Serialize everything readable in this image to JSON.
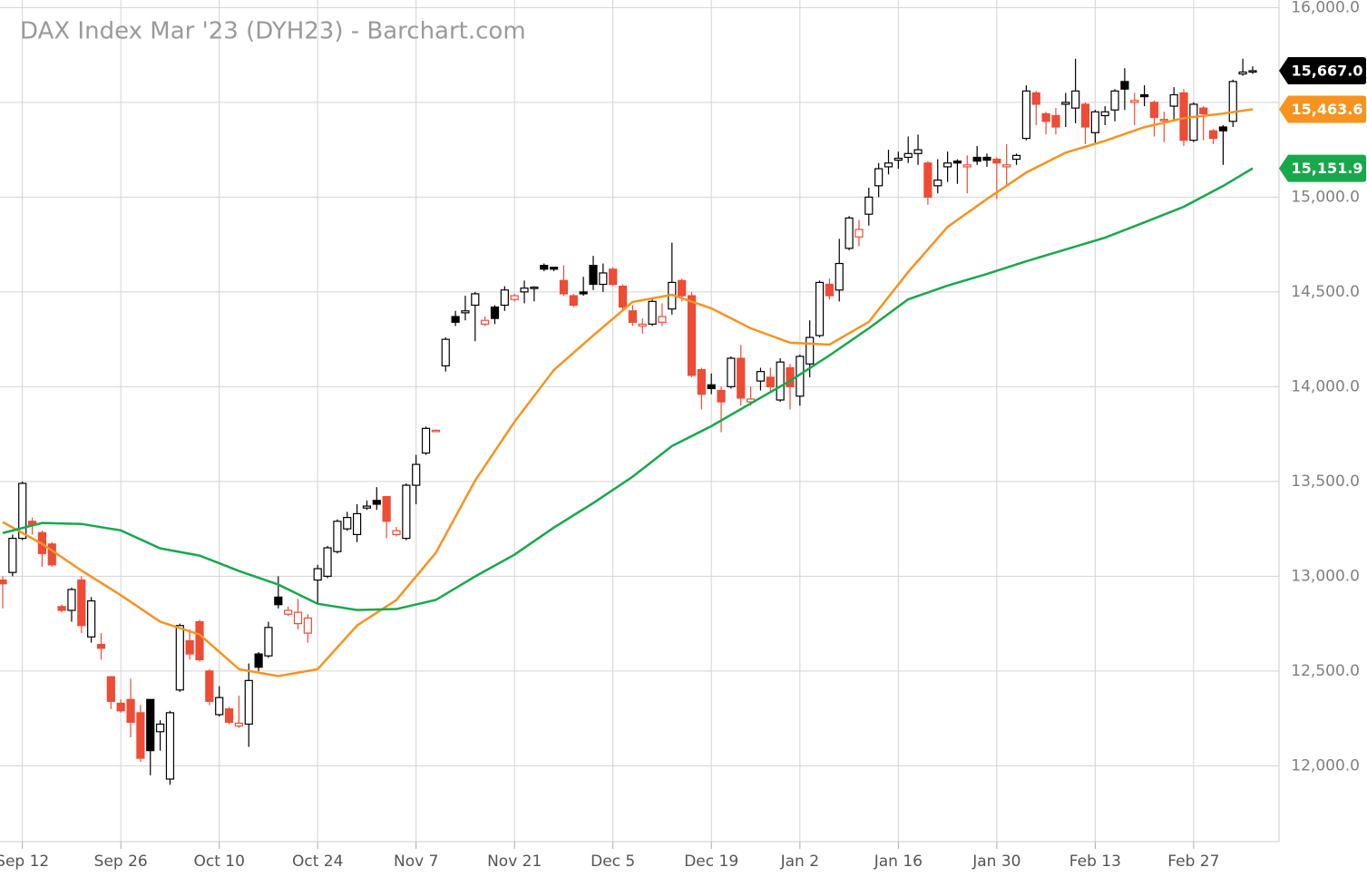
{
  "chart_data": {
    "type": "candlestick",
    "title": "DAX Index Mar '23 (DYH23) - Barchart.com",
    "categories": [
      null,
      null,
      "Sep 12",
      null,
      null,
      null,
      null,
      null,
      null,
      null,
      null,
      null,
      "Sep 26",
      null,
      null,
      null,
      null,
      null,
      null,
      null,
      null,
      null,
      "Oct 10",
      null,
      null,
      null,
      null,
      null,
      null,
      null,
      null,
      null,
      "Oct 24",
      null,
      null,
      null,
      null,
      null,
      null,
      null,
      null,
      null,
      "Nov 7",
      null,
      null,
      null,
      null,
      null,
      null,
      null,
      null,
      null,
      "Nov 21",
      null,
      null,
      null,
      null,
      null,
      null,
      null,
      null,
      null,
      "Dec 5",
      null,
      null,
      null,
      null,
      null,
      null,
      null,
      null,
      null,
      "Dec 19",
      null,
      null,
      null,
      null,
      null,
      null,
      null,
      null,
      "Jan 2",
      null,
      null,
      null,
      null,
      null,
      null,
      null,
      null,
      null,
      "Jan 16",
      null,
      null,
      null,
      null,
      null,
      null,
      null,
      null,
      null,
      "Jan 30",
      null,
      null,
      null,
      null,
      null,
      null,
      null,
      null,
      null,
      "Feb 13",
      null,
      null,
      null,
      null,
      null,
      null,
      null,
      null,
      null,
      "Feb 27",
      null,
      null,
      null,
      null,
      null,
      null
    ],
    "open": [
      12980,
      13020,
      13200,
      13290,
      13230,
      13170,
      12840,
      12820,
      12980,
      12680,
      12640,
      12470,
      12330,
      12350,
      12280,
      12350,
      12180,
      11930,
      12400,
      12660,
      12760,
      12500,
      12270,
      12300,
      12210,
      12220,
      12590,
      12580,
      12890,
      12800,
      12750,
      12700,
      12980,
      13000,
      13130,
      13250,
      13220,
      13360,
      13400,
      13420,
      13220,
      13200,
      13480,
      13650,
      13770,
      14110,
      14370,
      14390,
      14430,
      14330,
      14420,
      14430,
      14460,
      14500,
      14520,
      14640,
      14630,
      14560,
      14480,
      14500,
      14640,
      14540,
      14620,
      14530,
      14400,
      14320,
      14330,
      14340,
      14410,
      14560,
      14480,
      14090,
      14010,
      13980,
      14000,
      14150,
      13920,
      14030,
      14050,
      13930,
      14100,
      13950,
      14120,
      14270,
      14540,
      14510,
      14730,
      14790,
      14910,
      15060,
      15160,
      15195,
      15210,
      15230,
      15180,
      15060,
      15160,
      15190,
      15160,
      15210,
      15210,
      15200,
      15160,
      15200,
      15310,
      15550,
      15440,
      15430,
      15490,
      15470,
      15490,
      15340,
      15430,
      15460,
      15610,
      15500,
      15540,
      15500,
      15405,
      15480,
      15550,
      15300,
      15470,
      15350,
      15370,
      15400,
      15650,
      15660
    ],
    "high": [
      13000,
      13220,
      13500,
      13310,
      13240,
      13180,
      12850,
      12940,
      13000,
      12890,
      12700,
      12470,
      12350,
      12460,
      12320,
      12350,
      12240,
      12290,
      12750,
      12720,
      12770,
      12510,
      12420,
      12310,
      12370,
      12540,
      12600,
      12760,
      13000,
      12840,
      12880,
      12800,
      13060,
      13160,
      13300,
      13340,
      13380,
      13400,
      13470,
      13420,
      13260,
      13490,
      13640,
      13790,
      13775,
      14260,
      14400,
      14480,
      14500,
      14370,
      14430,
      14530,
      14490,
      14560,
      14530,
      14650,
      14630,
      14640,
      14490,
      14580,
      14690,
      14650,
      14630,
      14540,
      14430,
      14360,
      14460,
      14440,
      14760,
      14570,
      14500,
      14100,
      14070,
      14000,
      14160,
      14220,
      14000,
      14100,
      14100,
      14150,
      14120,
      14170,
      14350,
      14560,
      14570,
      14780,
      14900,
      14880,
      15050,
      15180,
      15250,
      15240,
      15320,
      15330,
      15190,
      15200,
      15240,
      15200,
      15220,
      15270,
      15230,
      15210,
      15280,
      15230,
      15590,
      15560,
      15450,
      15470,
      15550,
      15730,
      15500,
      15460,
      15480,
      15570,
      15680,
      15550,
      15590,
      15510,
      15450,
      15580,
      15570,
      15500,
      15480,
      15360,
      15380,
      15620,
      15730,
      15690
    ],
    "low": [
      12830,
      13000,
      13190,
      13220,
      13050,
      13050,
      12810,
      12760,
      12700,
      12650,
      12560,
      12300,
      12280,
      12150,
      12020,
      11950,
      12080,
      11900,
      12390,
      12560,
      12550,
      12320,
      12260,
      12220,
      12200,
      12100,
      12500,
      12570,
      12830,
      12790,
      12720,
      12650,
      12850,
      12990,
      13120,
      13240,
      13180,
      13350,
      13350,
      13200,
      13210,
      13190,
      13380,
      13640,
      13765,
      14080,
      14320,
      14350,
      14240,
      14320,
      14330,
      14400,
      14450,
      14440,
      14450,
      14610,
      14610,
      14480,
      14420,
      14480,
      14510,
      14500,
      14530,
      14400,
      14320,
      14280,
      14320,
      14320,
      14380,
      14450,
      14050,
      13880,
      13960,
      13760,
      13990,
      13900,
      13900,
      13980,
      13970,
      13920,
      13880,
      13900,
      14050,
      14260,
      14460,
      14450,
      14720,
      14740,
      14850,
      15000,
      15120,
      15150,
      15180,
      15170,
      14960,
      15020,
      15080,
      15070,
      15020,
      15170,
      15160,
      14990,
      15060,
      15170,
      15300,
      15380,
      15330,
      15330,
      15370,
      15390,
      15280,
      15280,
      15380,
      15400,
      15460,
      15380,
      15480,
      15320,
      15290,
      15400,
      15270,
      15290,
      15300,
      15280,
      15170,
      15370,
      15640,
      15650
    ],
    "close": [
      12960,
      13200,
      13490,
      13270,
      13120,
      13060,
      12820,
      12930,
      12740,
      12870,
      12620,
      12340,
      12290,
      12230,
      12040,
      12080,
      12220,
      12280,
      12740,
      12590,
      12560,
      12340,
      12360,
      12230,
      12225,
      12450,
      12520,
      12730,
      12850,
      12820,
      12810,
      12780,
      13040,
      13150,
      13290,
      13310,
      13330,
      13370,
      13380,
      13290,
      13240,
      13480,
      13590,
      13780,
      13770,
      14250,
      14340,
      14400,
      14490,
      14350,
      14360,
      14510,
      14480,
      14520,
      14525,
      14620,
      14620,
      14490,
      14430,
      14490,
      14540,
      14600,
      14540,
      14420,
      14340,
      14330,
      14450,
      14370,
      14550,
      14480,
      14060,
      13960,
      13990,
      13920,
      14150,
      13940,
      13935,
      14080,
      14000,
      14130,
      14000,
      14160,
      14260,
      14550,
      14480,
      14650,
      14890,
      14830,
      15000,
      15150,
      15180,
      15205,
      15230,
      15250,
      15000,
      15090,
      15180,
      15180,
      15170,
      15190,
      15195,
      15180,
      15170,
      15220,
      15560,
      15490,
      15400,
      15370,
      15500,
      15560,
      15370,
      15450,
      15450,
      15560,
      15570,
      15510,
      15530,
      15420,
      15410,
      15540,
      15300,
      15490,
      15440,
      15310,
      15350,
      15610,
      15660,
      15667
    ],
    "up_color": "#000000",
    "down_color": "#ef4b35",
    "last_price_label": {
      "value": 15667,
      "label": "15,667.0"
    },
    "moving_averages": [
      {
        "color": "#f7931e",
        "x": [
          0,
          4,
          8,
          12,
          16,
          20,
          24,
          28,
          32,
          36,
          40,
          44,
          48,
          52,
          56,
          60,
          64,
          68,
          72,
          76,
          80,
          84,
          88,
          92,
          96,
          100,
          104,
          108,
          112,
          116,
          120,
          124,
          127
        ],
        "values": [
          13286,
          13171,
          13030,
          12900,
          12760,
          12693,
          12510,
          12473,
          12510,
          12740,
          12875,
          13123,
          13505,
          13815,
          14088,
          14270,
          14447,
          14485,
          14413,
          14308,
          14232,
          14222,
          14342,
          14605,
          14843,
          14990,
          15130,
          15235,
          15297,
          15369,
          15417,
          15441,
          15463.6
        ],
        "last_label": {
          "value": 15463.6,
          "label": "15,463.6"
        }
      },
      {
        "color": "#17a84b",
        "x": [
          0,
          4,
          8,
          12,
          16,
          20,
          24,
          28,
          32,
          36,
          40,
          44,
          48,
          52,
          56,
          60,
          64,
          68,
          72,
          76,
          80,
          84,
          88,
          92,
          96,
          100,
          104,
          108,
          112,
          116,
          120,
          124,
          127
        ],
        "values": [
          13228,
          13281,
          13276,
          13242,
          13147,
          13109,
          13028,
          12956,
          12855,
          12822,
          12827,
          12875,
          12999,
          13114,
          13257,
          13386,
          13525,
          13687,
          13792,
          13912,
          14031,
          14165,
          14308,
          14461,
          14533,
          14595,
          14662,
          14724,
          14786,
          14867,
          14949,
          15059,
          15151.9
        ],
        "last_label": {
          "value": 15151.9,
          "label": "15,151.9"
        }
      }
    ],
    "ylim": [
      11600,
      16040
    ],
    "yticks": [
      {
        "value": 12000,
        "label": "12,000.0"
      },
      {
        "value": 12500,
        "label": "12,500.0"
      },
      {
        "value": 13000,
        "label": "13,000.0"
      },
      {
        "value": 13500,
        "label": "13,500.0"
      },
      {
        "value": 14000,
        "label": "14,000.0"
      },
      {
        "value": 14500,
        "label": "14,500.0"
      },
      {
        "value": 15000,
        "label": "15,000.0"
      },
      {
        "value": 15500,
        "label": "15,500.0"
      },
      {
        "value": 16000,
        "label": "16,000.0"
      }
    ],
    "grid": true
  }
}
